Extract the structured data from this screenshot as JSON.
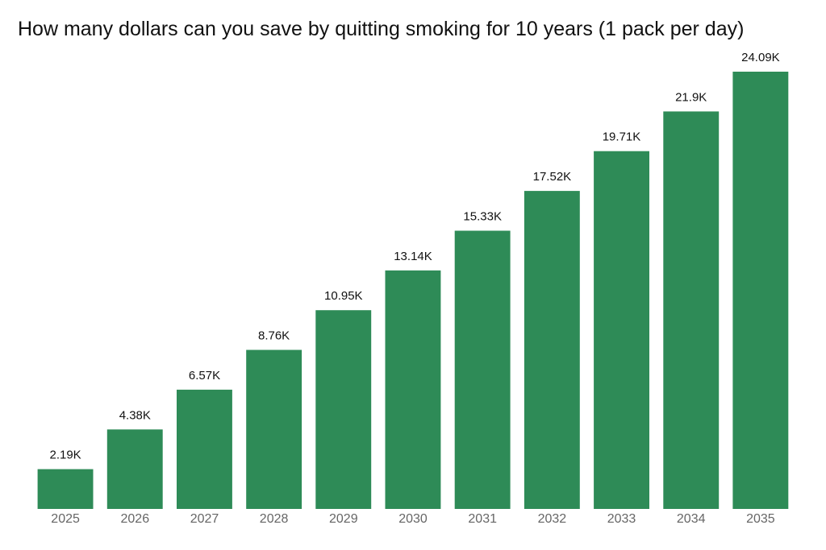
{
  "chart_data": {
    "type": "bar",
    "title": "How many dollars can you save by quitting smoking for 10 years (1 pack per day)",
    "xlabel": "",
    "ylabel": "",
    "categories": [
      "2025",
      "2026",
      "2027",
      "2028",
      "2029",
      "2030",
      "2031",
      "2032",
      "2033",
      "2034",
      "2035"
    ],
    "values": [
      2190,
      4380,
      6570,
      8760,
      10950,
      13140,
      15330,
      17520,
      19710,
      21900,
      24090
    ],
    "data_labels": [
      "2.19K",
      "4.38K",
      "6.57K",
      "8.76K",
      "10.95K",
      "13.14K",
      "15.33K",
      "17.52K",
      "19.71K",
      "21.9K",
      "24.09K"
    ],
    "ylim": [
      0,
      24090
    ],
    "grid": false,
    "legend": "none",
    "bar_color": "#2e8b57"
  }
}
